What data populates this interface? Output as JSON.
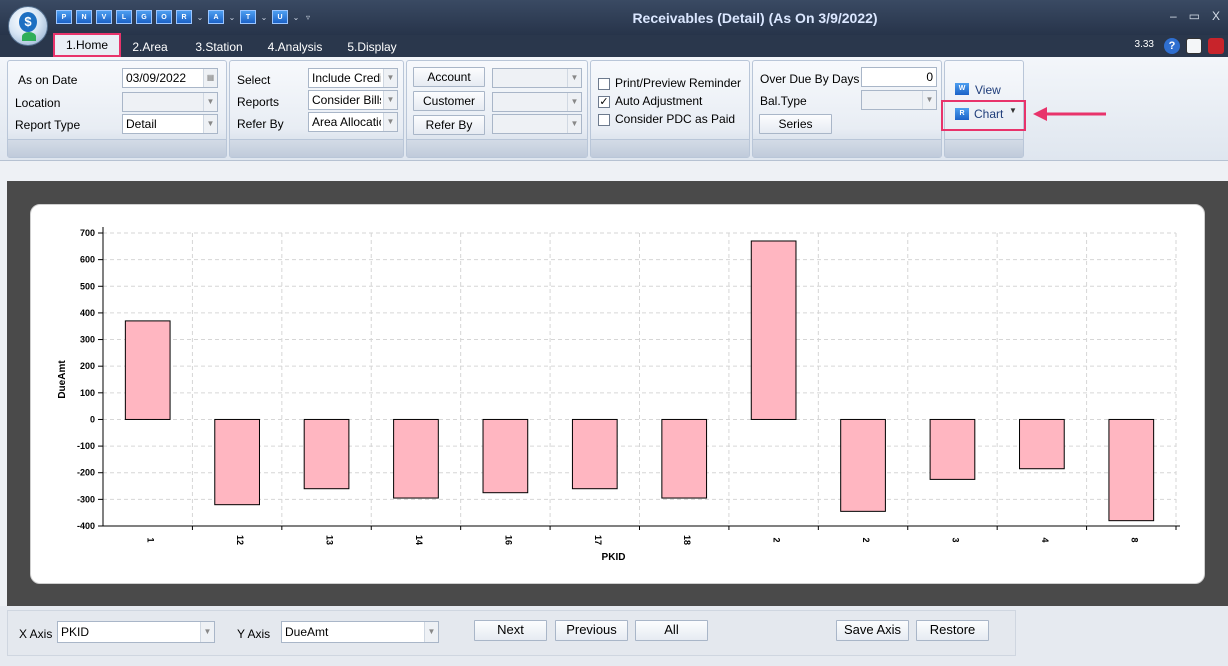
{
  "titlebar": {
    "app_icon": "app-logo-icon",
    "quick_access": [
      {
        "label": "P",
        "dropdown": false
      },
      {
        "label": "N",
        "dropdown": false
      },
      {
        "label": "V",
        "dropdown": false
      },
      {
        "label": "L",
        "dropdown": false
      },
      {
        "label": "G",
        "dropdown": false
      },
      {
        "label": "O",
        "dropdown": false
      },
      {
        "label": "R",
        "dropdown": true
      },
      {
        "label": "A",
        "dropdown": true
      },
      {
        "label": "T",
        "dropdown": true
      },
      {
        "label": "U",
        "dropdown": true
      }
    ],
    "customize_glyph": "▿",
    "title": "Receivables (Detail) (As On 3/9/2022)",
    "minimize": "–",
    "maximize": "▭",
    "close": "X"
  },
  "tabs": [
    {
      "label": "1.Home",
      "active": true
    },
    {
      "label": "2.Area",
      "active": false
    },
    {
      "label": "3.Station",
      "active": false
    },
    {
      "label": "4.Analysis",
      "active": false
    },
    {
      "label": "5.Display",
      "active": false
    }
  ],
  "version": "3.33",
  "filters": {
    "as_on_date_label": "As on Date",
    "as_on_date_value": "03/09/2022",
    "location_label": "Location",
    "location_value": "",
    "report_type_label": "Report Type",
    "report_type_value": "Detail",
    "select_label": "Select",
    "select_value": "Include Credit B",
    "reports_label": "Reports",
    "reports_value": "Consider Bills U",
    "refer_by_label": "Refer By",
    "refer_by_value": "Area Allocation",
    "account_button": "Account",
    "customer_button": "Customer",
    "refer_by_button": "Refer By",
    "print_preview_label": "Print/Preview Reminder",
    "print_preview_checked": false,
    "auto_adjustment_label": "Auto Adjustment",
    "auto_adjustment_checked": true,
    "consider_pdc_label": "Consider PDC as Paid",
    "consider_pdc_checked": false,
    "over_due_label": "Over Due By Days",
    "over_due_value": "0",
    "bal_type_label": "Bal.Type",
    "series_button": "Series",
    "view_label": "View",
    "chart_label": "Chart",
    "checkmark": "✓"
  },
  "bottom": {
    "x_axis_label": "X Axis",
    "x_axis_value": "PKID",
    "y_axis_label": "Y Axis",
    "y_axis_value": "DueAmt",
    "next": "Next",
    "previous": "Previous",
    "all": "All",
    "save_axis": "Save Axis",
    "restore": "Restore"
  },
  "chart_data": {
    "type": "bar",
    "xlabel": "PKID",
    "ylabel": "DueAmt",
    "ylim": [
      -400,
      700
    ],
    "yticks": [
      700,
      600,
      500,
      400,
      300,
      200,
      100,
      0,
      -100,
      -200,
      -300,
      -400
    ],
    "grid": true,
    "bar_color": "#ffb6c1",
    "categories": [
      "1",
      "12",
      "13",
      "14",
      "16",
      "17",
      "18",
      "2",
      "2",
      "3",
      "4",
      "8"
    ],
    "values": [
      370,
      -320,
      -260,
      -295,
      -275,
      -260,
      -295,
      670,
      -345,
      -225,
      -185,
      -380
    ]
  }
}
